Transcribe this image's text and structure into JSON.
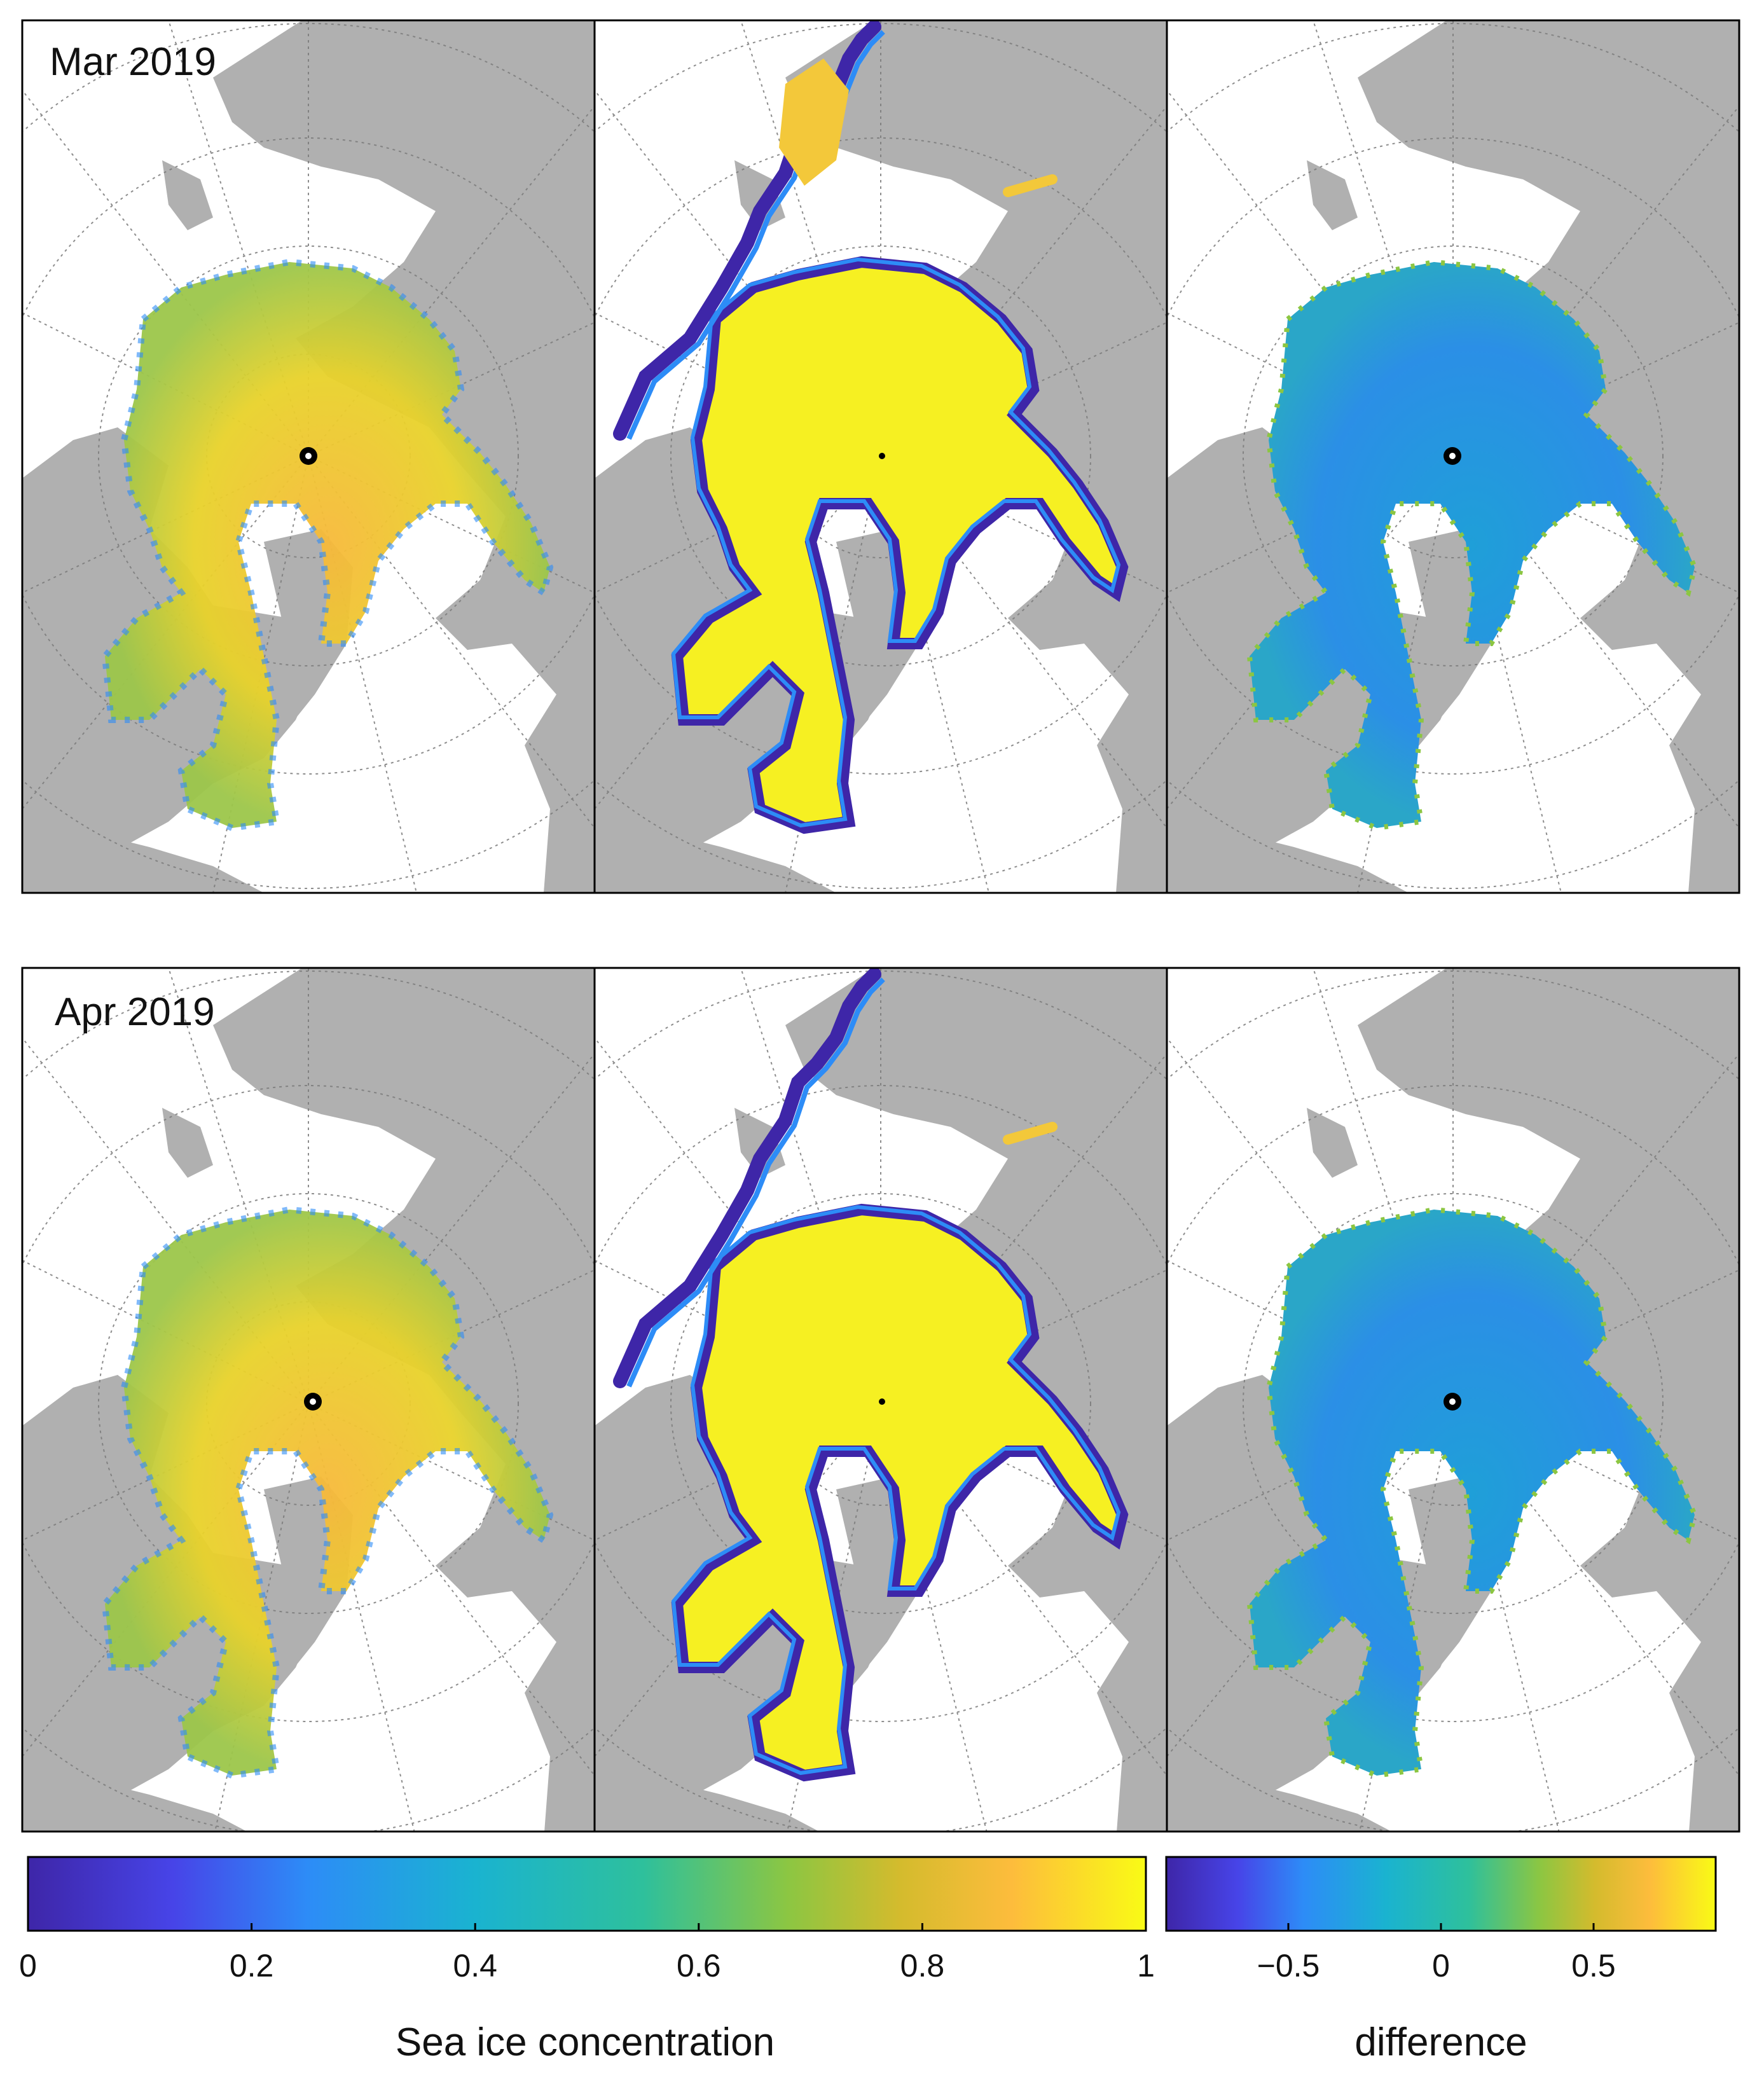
{
  "figure": {
    "rows": [
      {
        "label": "Mar 2019"
      },
      {
        "label": "Apr 2019"
      }
    ],
    "columns": 3,
    "center_marker": "north-pole-dot"
  },
  "colorbars": {
    "concentration": {
      "label": "Sea ice concentration",
      "ticks": [
        "0",
        "0.2",
        "0.4",
        "0.6",
        "0.8",
        "1"
      ],
      "range": [
        0,
        1
      ],
      "colors": [
        "#3e26a8",
        "#4744e8",
        "#2d8cf7",
        "#1ab3d0",
        "#2ec09c",
        "#8cc642",
        "#d4bb2d",
        "#fdbc3c",
        "#f9fb15"
      ]
    },
    "difference": {
      "label": "difference",
      "ticks": [
        "−0.5",
        "0",
        "0.5"
      ],
      "range": [
        -0.9,
        0.9
      ],
      "colors": [
        "#3e26a8",
        "#4744e8",
        "#2d8cf7",
        "#1ab3d0",
        "#2ec09c",
        "#8cc642",
        "#d4bb2d",
        "#fdbc3c",
        "#f9fb15"
      ]
    }
  },
  "colors": {
    "land": "#b0b0b0",
    "ocean": "#ffffff",
    "ice_high": "#f9fb15",
    "ice_mid": "#fdbc3c",
    "ice_edge": "#3e26a8",
    "diff_field": "#22a5d8"
  }
}
